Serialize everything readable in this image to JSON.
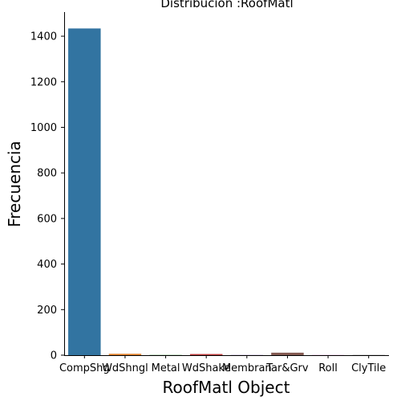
{
  "chart_data": {
    "type": "bar",
    "title": "Distribución :RoofMatl",
    "xlabel": "RoofMatl Object",
    "ylabel": "Frecuencia",
    "categories": [
      "CompShg",
      "WdShngl",
      "Metal",
      "WdShake",
      "Membran",
      "Tar&Grv",
      "Roll",
      "ClyTile"
    ],
    "values": [
      1434,
      6,
      1,
      5,
      1,
      11,
      1,
      1
    ],
    "colors": [
      "#3274a1",
      "#e1812c",
      "#3a923a",
      "#c03d3e",
      "#9372b2",
      "#845b53",
      "#d684bd",
      "#7f7f7f"
    ],
    "yticks": [
      0,
      200,
      400,
      600,
      800,
      1000,
      1200,
      1400
    ],
    "ylim": [
      0,
      1506
    ],
    "grid": false,
    "spines": [
      "left",
      "bottom"
    ]
  }
}
